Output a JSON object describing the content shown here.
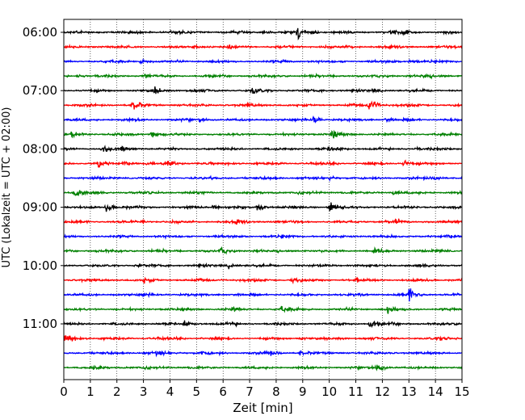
{
  "chart_data": {
    "type": "line",
    "title": "",
    "xlabel": "Zeit  [min]",
    "ylabel": "UTC (Lokalzeit = UTC + 02:00)",
    "xlim": [
      0,
      15
    ],
    "x_ticks": [
      0,
      1,
      2,
      3,
      4,
      5,
      6,
      7,
      8,
      9,
      10,
      11,
      12,
      13,
      14,
      15
    ],
    "y_tick_labels": [
      "06:00",
      "07:00",
      "08:00",
      "09:00",
      "10:00",
      "11:00"
    ],
    "grid": "vertical dotted",
    "row_minutes": 15,
    "colors": [
      "#000000",
      "#ff0000",
      "#0000ff",
      "#008000"
    ],
    "traces": [
      {
        "start": "06:00",
        "color": "#000000",
        "events": [
          [
            4.0,
            0.35
          ],
          [
            7.5,
            0.3
          ],
          [
            8.8,
            1.0
          ],
          [
            9.3,
            0.3
          ],
          [
            12.3,
            0.45
          ],
          [
            12.8,
            0.3
          ]
        ]
      },
      {
        "start": "06:15",
        "color": "#ff0000",
        "events": [
          [
            4.9,
            0.4
          ],
          [
            6.2,
            0.25
          ],
          [
            10.7,
            0.25
          ]
        ]
      },
      {
        "start": "06:30",
        "color": "#0000ff",
        "events": [
          [
            2.9,
            0.3
          ],
          [
            8.2,
            0.25
          ],
          [
            13.0,
            0.45
          ]
        ]
      },
      {
        "start": "06:45",
        "color": "#008000",
        "events": [
          [
            0.5,
            0.25
          ],
          [
            3.0,
            0.3
          ],
          [
            13.5,
            0.35
          ]
        ]
      },
      {
        "start": "07:00",
        "color": "#000000",
        "events": [
          [
            3.4,
            0.6
          ],
          [
            7.1,
            0.8
          ],
          [
            11.6,
            0.3
          ]
        ]
      },
      {
        "start": "07:15",
        "color": "#ff0000",
        "events": [
          [
            2.6,
            1.0
          ],
          [
            11.5,
            1.1
          ],
          [
            6.9,
            0.25
          ]
        ]
      },
      {
        "start": "07:30",
        "color": "#0000ff",
        "events": [
          [
            9.4,
            0.55
          ],
          [
            12.1,
            0.3
          ],
          [
            5.1,
            0.25
          ]
        ]
      },
      {
        "start": "07:45",
        "color": "#008000",
        "events": [
          [
            0.3,
            0.4
          ],
          [
            3.3,
            0.55
          ],
          [
            10.1,
            0.9
          ]
        ]
      },
      {
        "start": "08:00",
        "color": "#000000",
        "events": [
          [
            1.5,
            0.35
          ],
          [
            2.2,
            0.35
          ],
          [
            10.0,
            0.5
          ],
          [
            13.2,
            0.3
          ]
        ]
      },
      {
        "start": "08:15",
        "color": "#ff0000",
        "events": [
          [
            1.3,
            0.7
          ],
          [
            2.2,
            0.5
          ],
          [
            3.9,
            0.55
          ],
          [
            12.8,
            0.85
          ]
        ]
      },
      {
        "start": "08:30",
        "color": "#0000ff",
        "events": [
          [
            10.0,
            0.25
          ],
          [
            14.0,
            0.3
          ]
        ]
      },
      {
        "start": "08:45",
        "color": "#008000",
        "events": [
          [
            0.4,
            0.85
          ],
          [
            12.4,
            0.3
          ]
        ]
      },
      {
        "start": "09:00",
        "color": "#000000",
        "events": [
          [
            1.6,
            0.65
          ],
          [
            5.6,
            0.35
          ],
          [
            7.3,
            0.75
          ],
          [
            10.0,
            0.95
          ]
        ]
      },
      {
        "start": "09:15",
        "color": "#ff0000",
        "events": [
          [
            2.9,
            0.3
          ],
          [
            12.5,
            0.55
          ],
          [
            6.5,
            0.25
          ]
        ]
      },
      {
        "start": "09:30",
        "color": "#0000ff",
        "events": [
          [
            8.2,
            0.25
          ],
          [
            14.3,
            0.3
          ]
        ]
      },
      {
        "start": "09:45",
        "color": "#008000",
        "events": [
          [
            5.9,
            0.5
          ],
          [
            11.7,
            0.55
          ]
        ]
      },
      {
        "start": "10:00",
        "color": "#000000",
        "events": [
          [
            6.2,
            0.45
          ],
          [
            2.8,
            0.25
          ]
        ]
      },
      {
        "start": "10:15",
        "color": "#ff0000",
        "events": [
          [
            3.0,
            0.45
          ],
          [
            8.6,
            0.55
          ],
          [
            11.0,
            0.25
          ]
        ]
      },
      {
        "start": "10:30",
        "color": "#0000ff",
        "events": [
          [
            13.0,
            0.95
          ],
          [
            3.0,
            0.3
          ]
        ]
      },
      {
        "start": "10:45",
        "color": "#008000",
        "events": [
          [
            6.4,
            0.45
          ],
          [
            8.2,
            0.4
          ],
          [
            12.2,
            0.6
          ]
        ]
      },
      {
        "start": "11:00",
        "color": "#000000",
        "events": [
          [
            4.5,
            0.5
          ],
          [
            6.3,
            0.35
          ],
          [
            11.5,
            0.8
          ]
        ]
      },
      {
        "start": "11:15",
        "color": "#ff0000",
        "events": [
          [
            0.05,
            1.2
          ],
          [
            8.9,
            0.3
          ],
          [
            14.2,
            0.35
          ]
        ]
      },
      {
        "start": "11:30",
        "color": "#0000ff",
        "events": [
          [
            3.5,
            0.6
          ],
          [
            5.2,
            0.4
          ],
          [
            7.6,
            0.55
          ],
          [
            8.9,
            0.35
          ]
        ]
      },
      {
        "start": "11:45",
        "color": "#008000",
        "events": [
          [
            1.1,
            0.3
          ],
          [
            11.8,
            0.7
          ]
        ]
      }
    ]
  }
}
